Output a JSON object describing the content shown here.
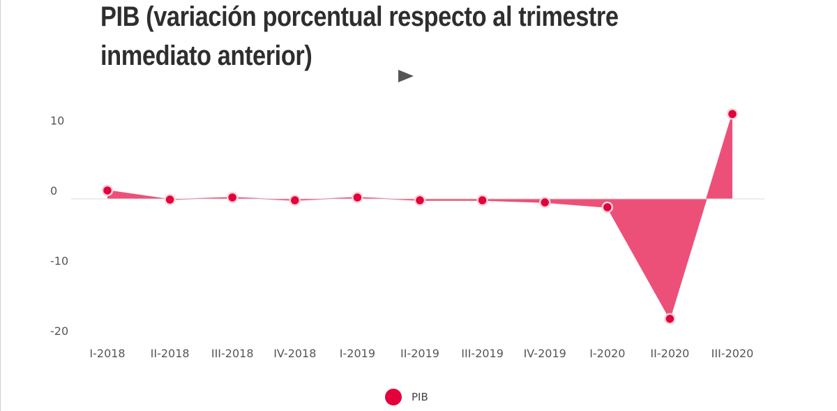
{
  "title": "PIB (variación porcentual respecto al trimestre inmediato anterior)",
  "icons": {
    "play": "play-icon"
  },
  "chart_data": {
    "type": "area",
    "categories": [
      "I-2018",
      "II-2018",
      "III-2018",
      "IV-2018",
      "I-2019",
      "II-2019",
      "III-2019",
      "IV-2019",
      "I-2020",
      "II-2020",
      "III-2020"
    ],
    "series": [
      {
        "name": "PIB",
        "color": "#e4003b",
        "fill": "#ec5078",
        "values": [
          1.2,
          -0.1,
          0.2,
          -0.2,
          0.2,
          -0.2,
          -0.2,
          -0.5,
          -1.2,
          -17.1,
          12.1
        ]
      }
    ],
    "yticks": [
      10,
      0,
      -10,
      -20
    ],
    "ylim": [
      -20,
      12
    ],
    "legend": "bottom-center",
    "grid": false
  }
}
